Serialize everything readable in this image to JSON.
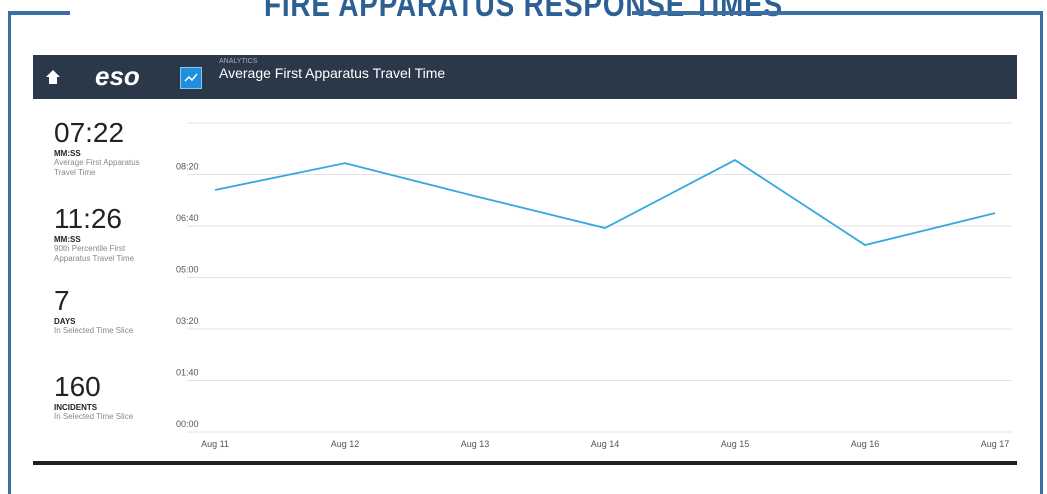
{
  "banner": {
    "title": "FIRE APPARATUS RESPONSE TIMES"
  },
  "header": {
    "section": "ANALYTICS",
    "title": "Average First Apparatus Travel Time",
    "logo": "eso"
  },
  "stats": [
    {
      "value": "07:22",
      "unit": "MM:SS",
      "caption": "Average First Apparatus Travel Time"
    },
    {
      "value": "11:26",
      "unit": "MM:SS",
      "caption": "90th Percentile First Apparatus Travel Time"
    },
    {
      "value": "7",
      "unit": "DAYS",
      "caption": "In Selected Time Slice"
    },
    {
      "value": "160",
      "unit": "INCIDENTS",
      "caption": "In Selected Time Slice"
    }
  ],
  "chart_data": {
    "type": "line",
    "categories": [
      "Aug 11",
      "Aug 12",
      "Aug 13",
      "Aug 14",
      "Aug 15",
      "Aug 16",
      "Aug 17"
    ],
    "values": [
      470,
      522,
      458,
      396,
      528,
      363,
      425
    ],
    "color": "#35a8e0",
    "ylim": [
      0,
      600
    ],
    "yticks": [
      {
        "value": 0,
        "label": "00:00"
      },
      {
        "value": 100,
        "label": "01:40"
      },
      {
        "value": 200,
        "label": "03:20"
      },
      {
        "value": 300,
        "label": "05:00"
      },
      {
        "value": 400,
        "label": "06:40"
      },
      {
        "value": 500,
        "label": "08:20"
      }
    ],
    "grid": true
  }
}
